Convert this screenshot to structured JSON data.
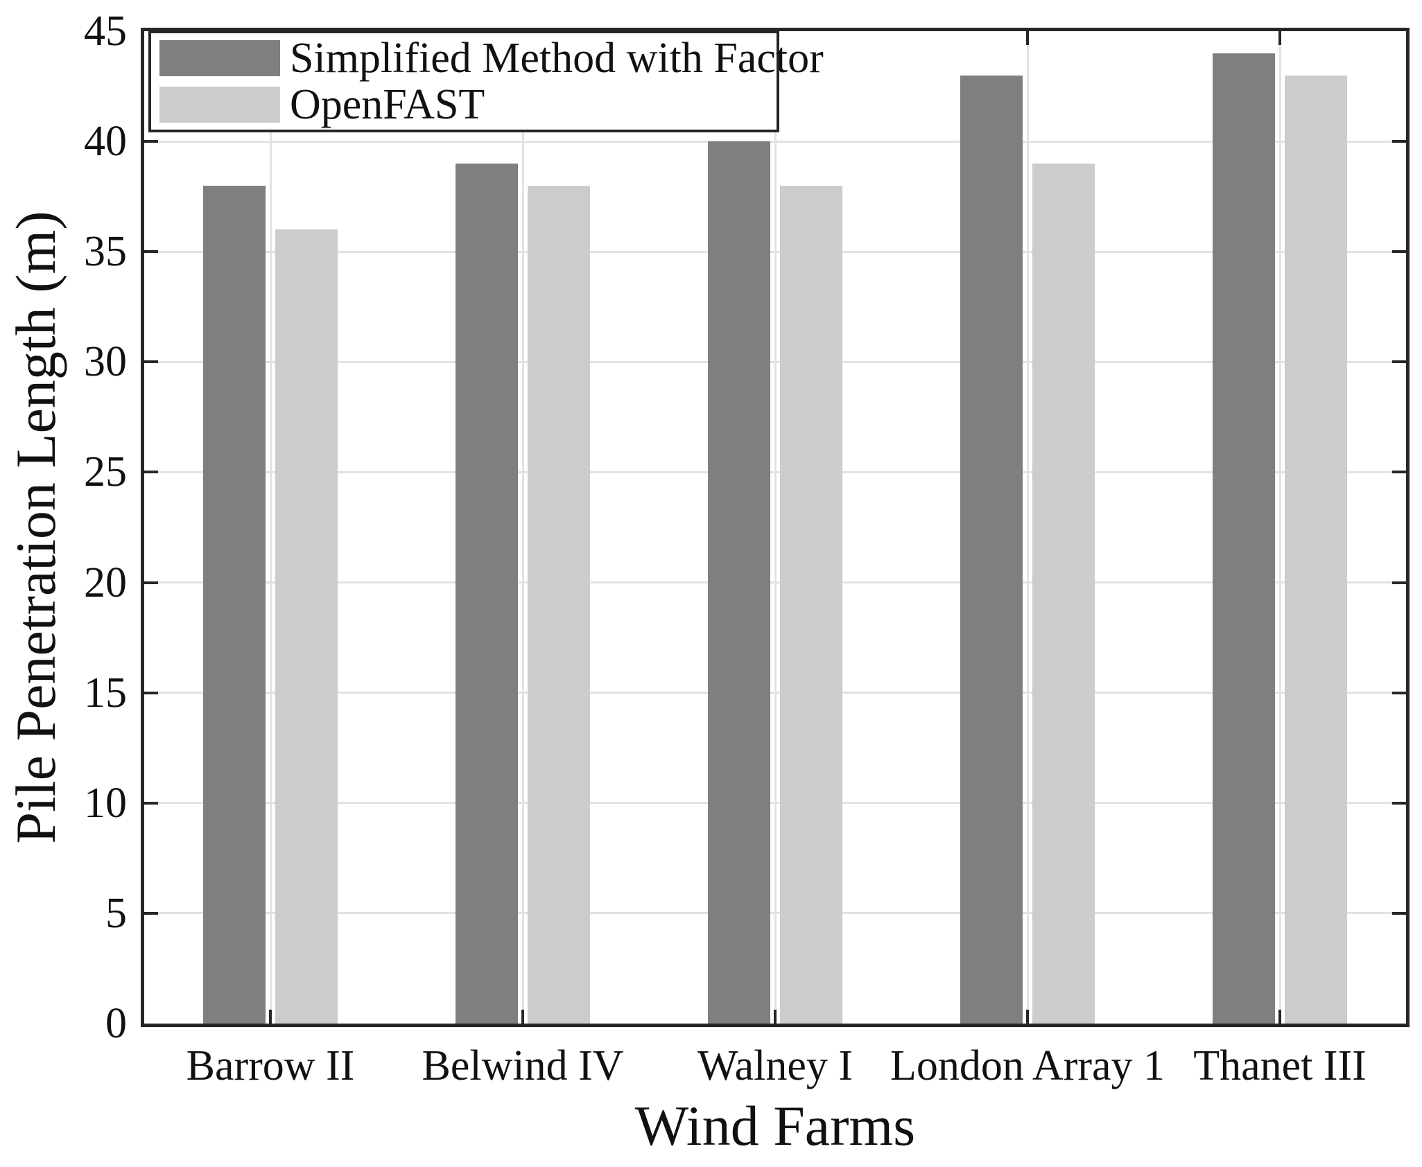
{
  "chart_data": {
    "type": "bar",
    "title": "",
    "xlabel": "Wind Farms",
    "ylabel": "Pile Penetration Length (m)",
    "categories": [
      "Barrow II",
      "Belwind IV",
      "Walney I",
      "London Array 1",
      "Thanet III"
    ],
    "series": [
      {
        "name": "Simplified Method with Factor",
        "color": "#7f7f7f",
        "values": [
          38,
          39,
          40,
          43,
          44
        ]
      },
      {
        "name": "OpenFAST",
        "color": "#cccccc",
        "values": [
          36,
          38,
          38,
          39,
          43
        ]
      }
    ],
    "ylim": [
      0,
      45
    ],
    "yticks": [
      0,
      5,
      10,
      15,
      20,
      25,
      30,
      35,
      40,
      45
    ],
    "grid": true,
    "legend_position": "top-left",
    "axis_color": "#262626",
    "grid_color": "#e2e2e2",
    "background": "#ffffff"
  }
}
